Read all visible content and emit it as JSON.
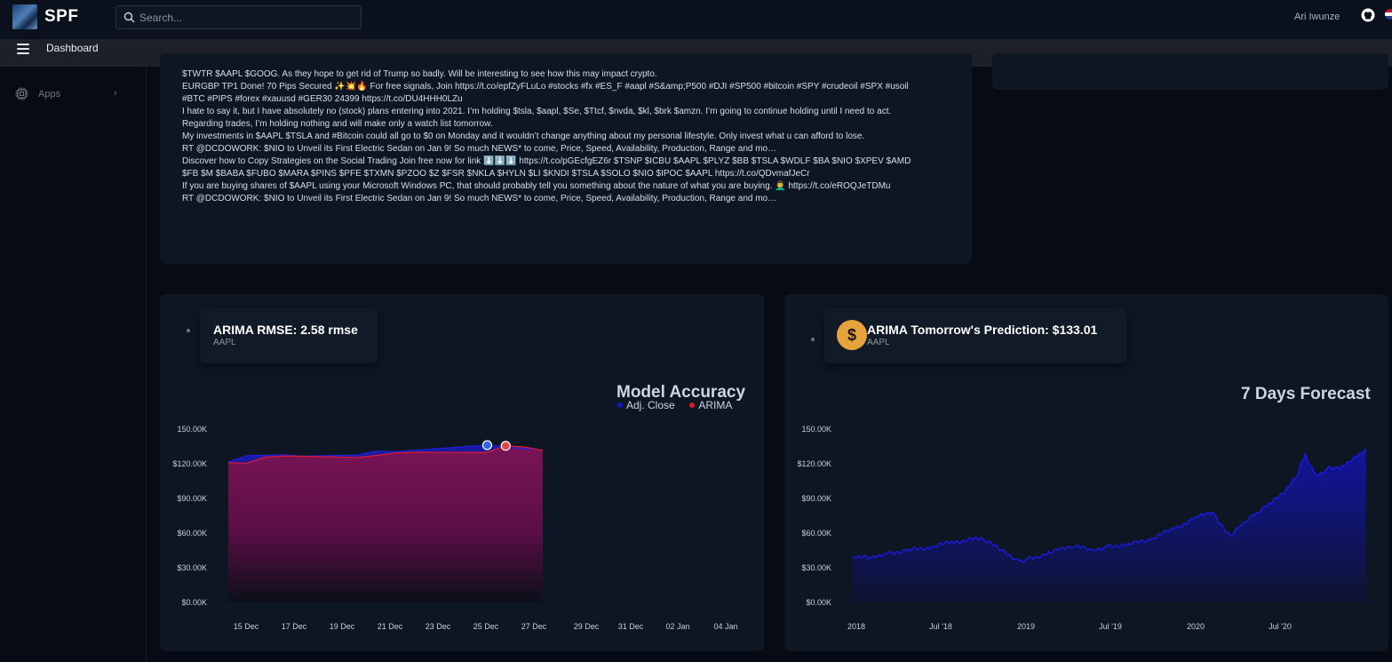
{
  "header": {
    "brand": "SPF",
    "search_placeholder": "Search...",
    "username": "Ari Iwunze"
  },
  "subbar": {
    "crumb": "Dashboard"
  },
  "sidebar": {
    "items": [
      {
        "label": "Apps",
        "icon": "chip-icon"
      }
    ]
  },
  "tweets": [
    "$TWTR $AAPL $GOOG. As they hope to get rid of Trump so badly. Will be interesting to see how this may impact crypto.",
    "EURGBP TP1 Done! 70 Pips Secured ✨💥🔥 For free signals, Join https://t.co/epfZyFLuLo #stocks #fx #ES_F #aapl #S&amp;P500 #DJI #SP500 #bitcoin #SPY #crudeoil #SPX #usoil #BTC #PIPS #forex #xauusd #GER30 24399 https://t.co/DU4HHH0LZu",
    "I hate to say it, but I have absolutely no (stock) plans entering into 2021. I’m holding $tsla, $aapl, $Se, $Ttcf, $nvda, $kl, $brk $amzn. I’m going to continue holding until I need to act. Regarding trades, I’m holding nothing and will make only a watch list tomorrow.",
    "My investments in $AAPL $TSLA and #Bitcoin could all go to $0 on Monday and it wouldn’t change anything about my personal lifestyle. Only invest what u can afford to lose.",
    "RT @DCDOWORK: $NIO to Unveil its First Electric Sedan on Jan 9! So much NEWS* to come, Price, Speed, Availability, Production, Range and mo…",
    "Discover how to Copy Strategies on the Social Trading Join free now for link ⬇️⬇️⬇️ https://t.co/pGEcfgEZ6r $TSNP $ICBU $AAPL $PLYZ $BB $TSLA $WDLF $BA $NIO $XPEV $AMD $FB $M $BABA $FUBO $MARA $PINS $PFE $TXMN $PZOO $Z $FSR $NKLA $HYLN $LI $KNDI $TSLA $SOLO $NIO $IPOC $AAPL https://t.co/QDvmafJeCr",
    "If you are buying shares of $AAPL using your Microsoft Windows PC, that should probably tell you something about the nature of what you are buying. 🤦‍♂️ https://t.co/eROQJeTDMu",
    "RT @DCDOWORK: $NIO to Unveil its First Electric Sedan on Jan 9! So much NEWS* to come, Price, Speed, Availability, Production, Range and mo…"
  ],
  "rmse_card": {
    "title": "ARIMA RMSE: 2.58 rmse",
    "subtitle": "AAPL"
  },
  "prediction_card": {
    "title": "ARIMA Tomorrow's Prediction: $133.01",
    "subtitle": "AAPL",
    "icon": "dollar-icon"
  },
  "colors": {
    "accent_gold": "#e7a33b",
    "adj_close": "#1515c8",
    "arima": "#e01a2c",
    "forecast": "#1313d6"
  },
  "chart_data": [
    {
      "type": "area",
      "title": "Model Accuracy",
      "legend_position": "top-right",
      "ylim": [
        0,
        150000
      ],
      "yticks": [
        "$0.00K",
        "$30.00K",
        "$60.00K",
        "$90.00K",
        "$120.00K",
        "150.00K"
      ],
      "x_ticks": [
        "15 Dec",
        "17 Dec",
        "19 Dec",
        "21 Dec",
        "23 Dec",
        "25 Dec",
        "27 Dec",
        "29 Dec",
        "31 Dec",
        "02 Jan",
        "04 Jan"
      ],
      "x_domain": [
        "2020-12-14",
        "2021-01-05"
      ],
      "series": [
        {
          "name": "Adj. Close",
          "x": [
            "2020-12-14",
            "2020-12-15",
            "2020-12-16",
            "2020-12-17",
            "2020-12-18",
            "2020-12-21",
            "2020-12-22",
            "2020-12-23",
            "2020-12-24",
            "2020-12-28",
            "2020-12-29",
            "2020-12-30",
            "2020-12-31"
          ],
          "values": [
            121500,
            127000,
            127500,
            127700,
            126600,
            127600,
            131000,
            130500,
            131700,
            136200,
            134300,
            133200,
            132000
          ]
        },
        {
          "name": "ARIMA",
          "x": [
            "2020-12-14",
            "2020-12-15",
            "2020-12-16",
            "2020-12-17",
            "2020-12-18",
            "2020-12-21",
            "2020-12-22",
            "2020-12-23",
            "2020-12-24",
            "2020-12-28",
            "2020-12-29",
            "2020-12-30",
            "2020-12-31"
          ],
          "values": [
            121000,
            120500,
            125800,
            126800,
            126500,
            125500,
            127200,
            129300,
            130000,
            129900,
            135600,
            134600,
            131600
          ]
        }
      ],
      "markers": [
        {
          "series": "Adj. Close",
          "x": "2020-12-28",
          "y": 136200
        },
        {
          "series": "ARIMA",
          "x": "2020-12-29",
          "y": 135600
        }
      ]
    },
    {
      "type": "area",
      "title": "7 Days Forecast",
      "ylim": [
        0,
        150000
      ],
      "yticks": [
        "$0.00K",
        "$30.00K",
        "$60.00K",
        "$90.00K",
        "$120.00K",
        "150.00K"
      ],
      "x_ticks": [
        "2018",
        "Jul '18",
        "2019",
        "Jul '19",
        "2020",
        "Jul '20"
      ],
      "x_domain": [
        "2018-01-01",
        "2021-01-15"
      ],
      "series": [
        {
          "x": [
            "2018-01-01",
            "2018-02-10",
            "2018-03-15",
            "2018-05-01",
            "2018-06-15",
            "2018-08-01",
            "2018-09-15",
            "2018-10-10",
            "2018-11-20",
            "2018-12-24",
            "2019-01-15",
            "2019-03-01",
            "2019-04-20",
            "2019-05-30",
            "2019-07-01",
            "2019-08-15",
            "2019-10-01",
            "2019-11-15",
            "2019-12-31",
            "2020-02-10",
            "2020-03-20",
            "2020-04-15",
            "2020-05-15",
            "2020-06-15",
            "2020-07-15",
            "2020-08-10",
            "2020-08-28",
            "2020-09-20",
            "2020-10-15",
            "2020-11-15",
            "2020-12-15",
            "2021-01-05"
          ],
          "values": [
            40000,
            38000,
            43000,
            45000,
            48000,
            52000,
            55000,
            54000,
            44000,
            36000,
            38000,
            43000,
            50000,
            44000,
            49000,
            50000,
            55000,
            63000,
            72000,
            79000,
            57000,
            68000,
            77000,
            86000,
            95000,
            110000,
            128000,
            110000,
            116000,
            118000,
            127000,
            133000
          ]
        }
      ]
    }
  ]
}
